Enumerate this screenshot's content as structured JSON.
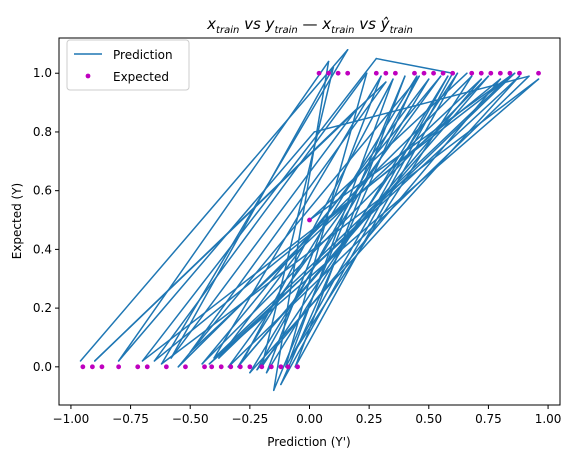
{
  "chart_data": {
    "type": "line",
    "title": "x_train vs y_train  —  x_train vs ŷ_train",
    "title_parts": {
      "a": "x",
      "a_sub": "train",
      "vs1": " vs ",
      "b": "y",
      "b_sub": "train",
      "sep": "  —  ",
      "c": "x",
      "c_sub": "train",
      "vs2": " vs ",
      "d": "ŷ",
      "d_sub": "train"
    },
    "xlabel": "Prediction (Y')",
    "ylabel": "Expected (Y)",
    "xlim": [
      -1.05,
      1.05
    ],
    "ylim": [
      -0.13,
      1.12
    ],
    "xticks": [
      -1.0,
      -0.75,
      -0.5,
      -0.25,
      0.0,
      0.25,
      0.5,
      0.75,
      1.0
    ],
    "xtick_labels": [
      "−1.00",
      "−0.75",
      "−0.50",
      "−0.25",
      "0.00",
      "0.25",
      "0.50",
      "0.75",
      "1.00"
    ],
    "yticks": [
      0.0,
      0.2,
      0.4,
      0.6,
      0.8,
      1.0
    ],
    "ytick_labels": [
      "0.0",
      "0.2",
      "0.4",
      "0.6",
      "0.8",
      "1.0"
    ],
    "grid": false,
    "legend": {
      "position": "top-left",
      "entries": [
        "Prediction",
        "Expected"
      ]
    },
    "colors": {
      "prediction": "#1f77b4",
      "expected": "#bf00bf"
    },
    "series": [
      {
        "name": "Prediction",
        "kind": "line",
        "points": [
          [
            -0.96,
            0.02
          ],
          [
            0.16,
            1.08
          ],
          [
            -0.62,
            0.01
          ],
          [
            0.96,
            0.98
          ],
          [
            -0.42,
            0.01
          ],
          [
            0.88,
            0.99
          ],
          [
            -0.25,
            -0.02
          ],
          [
            0.5,
            0.98
          ],
          [
            -0.38,
            0.03
          ],
          [
            0.86,
            1.0
          ],
          [
            -0.7,
            0.02
          ],
          [
            0.28,
            1.05
          ],
          [
            0.6,
            1.0
          ],
          [
            -0.12,
            -0.06
          ],
          [
            0.45,
            0.99
          ],
          [
            -0.3,
            0.0
          ],
          [
            0.72,
            0.98
          ],
          [
            -0.5,
            0.05
          ],
          [
            0.32,
            0.97
          ],
          [
            -0.9,
            0.02
          ],
          [
            0.2,
            0.88
          ],
          [
            -0.58,
            0.03
          ],
          [
            0.1,
            1.02
          ],
          [
            -0.2,
            0.0
          ],
          [
            0.62,
            1.0
          ],
          [
            -0.06,
            0.0
          ],
          [
            0.4,
            0.99
          ],
          [
            -0.15,
            -0.08
          ],
          [
            0.08,
            1.04
          ],
          [
            -0.8,
            0.02
          ],
          [
            0.02,
            0.8
          ],
          [
            0.92,
            0.99
          ],
          [
            -0.34,
            0.0
          ],
          [
            0.55,
            0.99
          ],
          [
            -0.45,
            0.01
          ],
          [
            0.75,
            0.99
          ],
          [
            -0.28,
            0.02
          ],
          [
            0.35,
            0.98
          ],
          [
            -0.08,
            0.03
          ],
          [
            0.68,
            0.99
          ],
          [
            -0.55,
            0.0
          ],
          [
            0.46,
            0.99
          ],
          [
            -0.22,
            -0.01
          ],
          [
            0.8,
            0.98
          ],
          [
            -0.65,
            0.02
          ],
          [
            0.24,
            1.0
          ],
          [
            -0.1,
            0.0
          ],
          [
            0.58,
            0.99
          ],
          [
            -0.18,
            -0.02
          ],
          [
            0.3,
            0.99
          ],
          [
            -0.4,
            0.03
          ],
          [
            0.84,
            0.99
          ],
          [
            0.0,
            0.5
          ],
          [
            0.66,
            1.0
          ]
        ]
      },
      {
        "name": "Expected",
        "kind": "scatter",
        "points": [
          [
            -0.95,
            0.0
          ],
          [
            -0.91,
            0.0
          ],
          [
            -0.87,
            0.0
          ],
          [
            -0.8,
            0.0
          ],
          [
            -0.72,
            0.0
          ],
          [
            -0.68,
            0.0
          ],
          [
            -0.6,
            0.0
          ],
          [
            -0.52,
            0.0
          ],
          [
            -0.44,
            0.0
          ],
          [
            -0.41,
            0.0
          ],
          [
            -0.37,
            0.0
          ],
          [
            -0.33,
            0.0
          ],
          [
            -0.29,
            0.0
          ],
          [
            -0.25,
            0.0
          ],
          [
            -0.2,
            0.0
          ],
          [
            -0.16,
            0.0
          ],
          [
            -0.12,
            0.0
          ],
          [
            -0.09,
            0.0
          ],
          [
            -0.05,
            0.0
          ],
          [
            0.0,
            0.5
          ],
          [
            0.04,
            1.0
          ],
          [
            0.08,
            1.0
          ],
          [
            0.12,
            1.0
          ],
          [
            0.16,
            1.0
          ],
          [
            0.28,
            1.0
          ],
          [
            0.32,
            1.0
          ],
          [
            0.36,
            1.0
          ],
          [
            0.44,
            1.0
          ],
          [
            0.48,
            1.0
          ],
          [
            0.52,
            1.0
          ],
          [
            0.56,
            1.0
          ],
          [
            0.6,
            1.0
          ],
          [
            0.68,
            1.0
          ],
          [
            0.72,
            1.0
          ],
          [
            0.76,
            1.0
          ],
          [
            0.8,
            1.0
          ],
          [
            0.84,
            1.0
          ],
          [
            0.88,
            1.0
          ],
          [
            0.96,
            1.0
          ]
        ]
      }
    ]
  }
}
